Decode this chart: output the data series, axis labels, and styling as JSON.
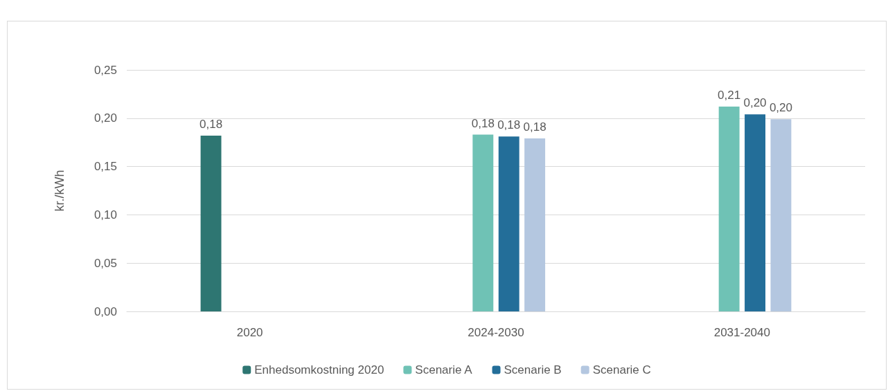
{
  "chart_data": {
    "type": "bar",
    "ylabel": "kr./kWh",
    "categories": [
      "2020",
      "2024-2030",
      "2031-2040"
    ],
    "series": [
      {
        "name": "Enhedsomkostning 2020",
        "color": "#2e7672",
        "values": [
          0.182,
          null,
          null
        ],
        "value_labels": [
          "0,18",
          null,
          null
        ]
      },
      {
        "name": "Scenarie A",
        "color": "#6fc2b5",
        "values": [
          null,
          0.183,
          0.212
        ],
        "value_labels": [
          null,
          "0,18",
          "0,21"
        ]
      },
      {
        "name": "Scenarie B",
        "color": "#236e99",
        "values": [
          null,
          0.181,
          0.204
        ],
        "value_labels": [
          null,
          "0,18",
          "0,20"
        ]
      },
      {
        "name": "Scenarie C",
        "color": "#b4c7e0",
        "values": [
          null,
          0.179,
          0.199
        ],
        "value_labels": [
          null,
          "0,18",
          "0,20"
        ]
      }
    ],
    "ylim": [
      0,
      0.25
    ],
    "yticks": [
      {
        "value": 0,
        "label": "0,00"
      },
      {
        "value": 0.05,
        "label": "0,05"
      },
      {
        "value": 0.1,
        "label": "0,10"
      },
      {
        "value": 0.15,
        "label": "0,15"
      },
      {
        "value": 0.2,
        "label": "0,20"
      },
      {
        "value": 0.25,
        "label": "0,25"
      }
    ],
    "grid": "y",
    "legend": "bottom"
  }
}
